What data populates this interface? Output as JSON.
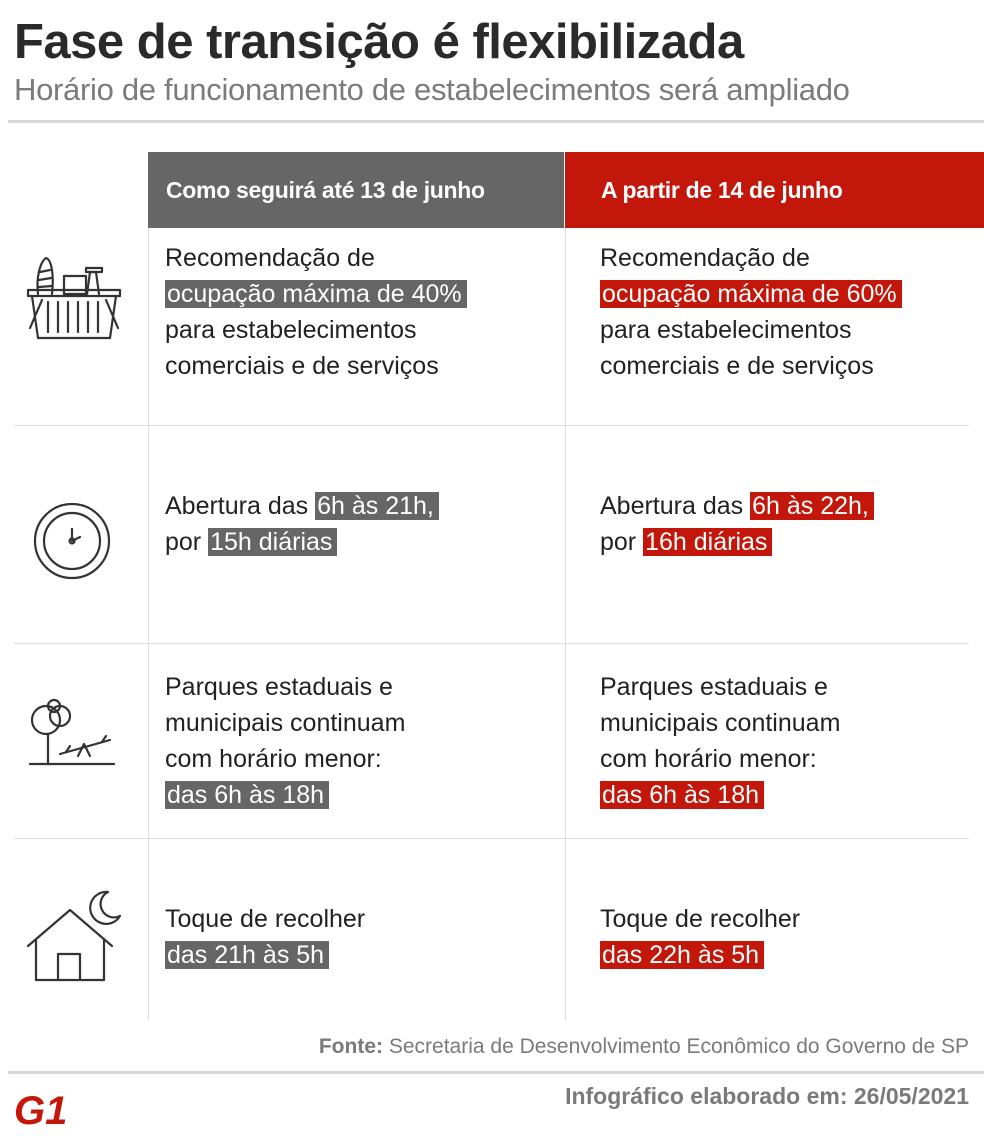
{
  "header": {
    "title": "Fase de transição é flexibilizada",
    "subtitle": "Horário de funcionamento de estabelecimentos  será ampliado"
  },
  "columns": {
    "old": "Como seguirá até 13 de junho",
    "new": "A partir de 14 de junho"
  },
  "colors": {
    "old_accent": "#666666",
    "new_accent": "#c4170c"
  },
  "rows": [
    {
      "icon": "shopping-basket-icon",
      "old": {
        "l1": "Recomendação de",
        "hl": "ocupação máxima de 40%",
        "l3": "para estabelecimentos",
        "l4": "comerciais e de serviços"
      },
      "new": {
        "l1": "Recomendação de",
        "hl": "ocupação máxima de 60%",
        "l3": "para estabelecimentos",
        "l4": "comerciais e de serviços"
      }
    },
    {
      "icon": "clock-icon",
      "old": {
        "pre1": "Abertura das",
        "hl1": "6h às 21h,",
        "pre2": "por",
        "hl2": "15h diárias"
      },
      "new": {
        "pre1": "Abertura das",
        "hl1": "6h às 22h,",
        "pre2": "por",
        "hl2": "16h diárias"
      }
    },
    {
      "icon": "park-icon",
      "old": {
        "l1": "Parques estaduais e",
        "l2": "municipais continuam",
        "l3": "com horário menor:",
        "hl": "das 6h às 18h"
      },
      "new": {
        "l1": "Parques estaduais e",
        "l2": "municipais continuam",
        "l3": "com horário menor:",
        "hl": "das 6h às 18h"
      }
    },
    {
      "icon": "house-moon-icon",
      "old": {
        "l1": "Toque de recolher",
        "hl": "das 21h às 5h"
      },
      "new": {
        "l1": "Toque de recolher",
        "hl": "das 22h às 5h"
      }
    }
  ],
  "footer": {
    "source_label": "Fonte:",
    "source_text": "Secretaria de Desenvolvimento Econômico do Governo de SP",
    "logo": "G1",
    "credit": "Infográfico elaborado em: 26/05/2021"
  }
}
